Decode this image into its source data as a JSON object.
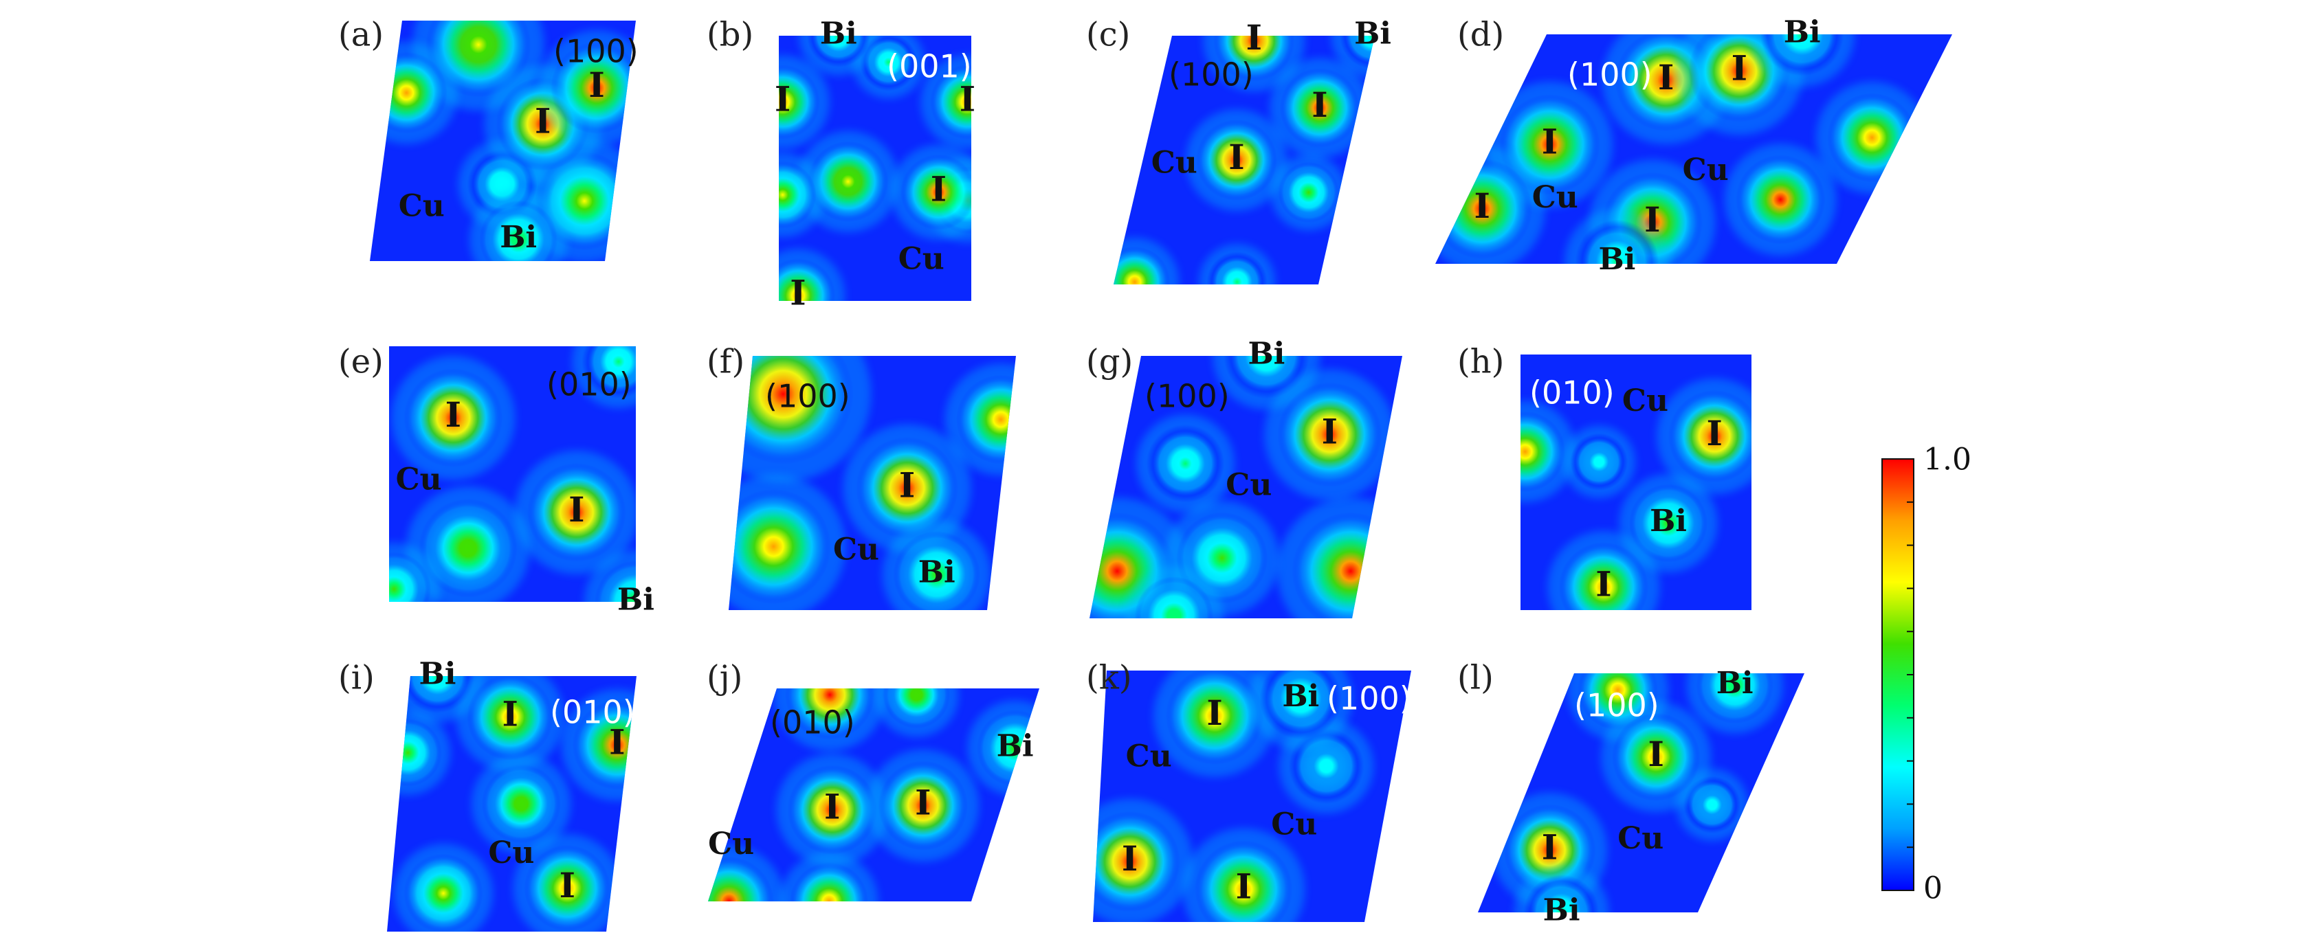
{
  "panels": [
    {
      "id": "a",
      "label": "(a)",
      "plane": "(100)",
      "plane_color": "#111111",
      "atoms": [
        {
          "symbol": "I",
          "sx": 0.66,
          "sy": 0.43,
          "r": 1.0
        },
        {
          "symbol": "I",
          "sx": 0.87,
          "sy": 0.28,
          "r": 0.95
        },
        {
          "symbol": "Cu",
          "sx": 0.19,
          "sy": 0.78,
          "r": 0
        },
        {
          "symbol": "Bi",
          "sx": 0.62,
          "sy": 0.91,
          "r": 0.45
        }
      ],
      "blobs": [
        {
          "sx": 0.34,
          "sy": 0.1,
          "r": 0.45,
          "v": 0.75
        },
        {
          "sx": 0.06,
          "sy": 0.3,
          "r": 0.35,
          "v": 0.9
        },
        {
          "sx": 0.88,
          "sy": 0.75,
          "r": 0.42,
          "v": 0.7
        },
        {
          "sx": 0.52,
          "sy": 0.68,
          "r": 0.3,
          "v": 0.35
        }
      ]
    },
    {
      "id": "b",
      "label": "(b)",
      "plane": "(001)",
      "plane_color": "#ffffff",
      "atoms": [
        {
          "symbol": "Bi",
          "sx": 0.31,
          "sy": 0.0,
          "r": 0.4
        },
        {
          "symbol": "I",
          "sx": 0.02,
          "sy": 0.25,
          "r": 0.9
        },
        {
          "symbol": "I",
          "sx": 0.98,
          "sy": 0.25,
          "r": 0.9
        },
        {
          "symbol": "I",
          "sx": 0.83,
          "sy": 0.59,
          "r": 0.95
        },
        {
          "symbol": "Cu",
          "sx": 0.74,
          "sy": 0.85,
          "r": 0
        },
        {
          "symbol": "I",
          "sx": 0.1,
          "sy": 0.98,
          "r": 0.9
        }
      ],
      "blobs": [
        {
          "sx": 0.36,
          "sy": 0.55,
          "r": 0.42,
          "v": 0.75
        },
        {
          "sx": 0.02,
          "sy": 0.6,
          "r": 0.35,
          "v": 0.7
        },
        {
          "sx": 0.98,
          "sy": 0.62,
          "r": 0.35,
          "v": 0.5
        },
        {
          "sx": 0.57,
          "sy": 0.1,
          "r": 0.3,
          "v": 0.4
        }
      ]
    },
    {
      "id": "c",
      "label": "(c)",
      "plane": "(100)",
      "plane_color": "#111111",
      "atoms": [
        {
          "symbol": "I",
          "sx": 0.41,
          "sy": 0.02,
          "r": 1.0
        },
        {
          "symbol": "Bi",
          "sx": 0.99,
          "sy": 0.0,
          "r": 0.4
        },
        {
          "symbol": "I",
          "sx": 0.81,
          "sy": 0.29,
          "r": 0.95
        },
        {
          "symbol": "I",
          "sx": 0.46,
          "sy": 0.5,
          "r": 1.0
        },
        {
          "symbol": "Cu",
          "sx": 0.16,
          "sy": 0.52,
          "r": 0
        }
      ],
      "blobs": [
        {
          "sx": 0.1,
          "sy": 0.99,
          "r": 0.35,
          "v": 0.85
        },
        {
          "sx": 0.85,
          "sy": 0.63,
          "r": 0.3,
          "v": 0.5
        },
        {
          "sx": 0.6,
          "sy": 0.99,
          "r": 0.3,
          "v": 0.4
        }
      ]
    },
    {
      "id": "d",
      "label": "(d)",
      "plane": "(100)",
      "plane_color": "#ffffff",
      "atoms": [
        {
          "symbol": "I",
          "sx": 0.35,
          "sy": 0.2,
          "r": 1.0
        },
        {
          "symbol": "I",
          "sx": 0.52,
          "sy": 0.16,
          "r": 1.0
        },
        {
          "symbol": "Bi",
          "sx": 0.63,
          "sy": 0.0,
          "r": 0.4
        },
        {
          "symbol": "I",
          "sx": 0.14,
          "sy": 0.48,
          "r": 0.95
        },
        {
          "symbol": "Cu",
          "sx": 0.22,
          "sy": 0.72,
          "r": 0
        },
        {
          "symbol": "Cu",
          "sx": 0.56,
          "sy": 0.6,
          "r": 0
        },
        {
          "symbol": "I",
          "sx": 0.05,
          "sy": 0.76,
          "r": 0.95
        },
        {
          "symbol": "I",
          "sx": 0.49,
          "sy": 0.82,
          "r": 0.95
        },
        {
          "symbol": "Bi",
          "sx": 0.45,
          "sy": 0.99,
          "r": 0.4
        }
      ],
      "blobs": [
        {
          "sx": 0.93,
          "sy": 0.45,
          "r": 0.35,
          "v": 0.9
        },
        {
          "sx": 0.78,
          "sy": 0.72,
          "r": 0.35,
          "v": 0.95
        }
      ]
    },
    {
      "id": "e",
      "label": "(e)",
      "plane": "(010)",
      "plane_color": "#111111",
      "atoms": [
        {
          "symbol": "I",
          "sx": 0.26,
          "sy": 0.28,
          "r": 1.0
        },
        {
          "symbol": "I",
          "sx": 0.76,
          "sy": 0.65,
          "r": 1.0
        },
        {
          "symbol": "Cu",
          "sx": 0.12,
          "sy": 0.53,
          "r": 0
        },
        {
          "symbol": "Bi",
          "sx": 1.0,
          "sy": 1.0,
          "r": 0.45
        }
      ],
      "blobs": [
        {
          "sx": 0.93,
          "sy": 0.06,
          "r": 0.3,
          "v": 0.4
        },
        {
          "sx": 0.32,
          "sy": 0.79,
          "r": 0.4,
          "v": 0.6
        },
        {
          "sx": 0.02,
          "sy": 0.95,
          "r": 0.3,
          "v": 0.5
        }
      ]
    },
    {
      "id": "f",
      "label": "(f)",
      "plane": "(100)",
      "plane_color": "#111111",
      "atoms": [
        {
          "symbol": "I",
          "sx": 0.64,
          "sy": 0.52,
          "r": 1.0
        },
        {
          "symbol": "Cu",
          "sx": 0.47,
          "sy": 0.77,
          "r": 0
        },
        {
          "symbol": "Bi",
          "sx": 0.79,
          "sy": 0.86,
          "r": 0.5
        }
      ],
      "blobs": [
        {
          "sx": 0.13,
          "sy": 0.15,
          "r": 0.55,
          "v": 1.0
        },
        {
          "sx": 0.97,
          "sy": 0.25,
          "r": 0.35,
          "v": 0.8
        },
        {
          "sx": 0.15,
          "sy": 0.75,
          "r": 0.45,
          "v": 0.85
        }
      ]
    },
    {
      "id": "g",
      "label": "(g)",
      "plane": "(100)",
      "plane_color": "#111111",
      "atoms": [
        {
          "symbol": "Bi",
          "sx": 0.48,
          "sy": 0.0,
          "r": 0.4
        },
        {
          "symbol": "I",
          "sx": 0.78,
          "sy": 0.3,
          "r": 1.0
        },
        {
          "symbol": "Cu",
          "sx": 0.51,
          "sy": 0.5,
          "r": 0
        }
      ],
      "blobs": [
        {
          "sx": 0.07,
          "sy": 0.82,
          "r": 0.45,
          "v": 0.95
        },
        {
          "sx": 0.96,
          "sy": 0.82,
          "r": 0.45,
          "v": 0.95
        },
        {
          "sx": 0.46,
          "sy": 0.77,
          "r": 0.35,
          "v": 0.5
        },
        {
          "sx": 0.25,
          "sy": 0.41,
          "r": 0.3,
          "v": 0.4
        },
        {
          "sx": 0.32,
          "sy": 0.99,
          "r": 0.3,
          "v": 0.45
        }
      ]
    },
    {
      "id": "h",
      "label": "(h)",
      "plane": "(010)",
      "plane_color": "#ffffff",
      "atoms": [
        {
          "symbol": "Cu",
          "sx": 0.54,
          "sy": 0.19,
          "r": 0
        },
        {
          "symbol": "I",
          "sx": 0.84,
          "sy": 0.32,
          "r": 1.0
        },
        {
          "symbol": "Bi",
          "sx": 0.64,
          "sy": 0.66,
          "r": 0.5
        },
        {
          "symbol": "I",
          "sx": 0.36,
          "sy": 0.91,
          "r": 0.9
        }
      ],
      "blobs": [
        {
          "sx": 0.02,
          "sy": 0.38,
          "r": 0.35,
          "v": 0.9
        },
        {
          "sx": 0.34,
          "sy": 0.42,
          "r": 0.25,
          "v": 0.3
        }
      ]
    },
    {
      "id": "i",
      "label": "(i)",
      "plane": "(010)",
      "plane_color": "#ffffff",
      "atoms": [
        {
          "symbol": "Bi",
          "sx": 0.12,
          "sy": 0.0,
          "r": 0.4
        },
        {
          "symbol": "I",
          "sx": 0.46,
          "sy": 0.16,
          "r": 0.85
        },
        {
          "symbol": "I",
          "sx": 0.95,
          "sy": 0.27,
          "r": 0.95
        },
        {
          "symbol": "Cu",
          "sx": 0.53,
          "sy": 0.7,
          "r": 0
        },
        {
          "symbol": "I",
          "sx": 0.8,
          "sy": 0.83,
          "r": 0.85
        }
      ],
      "blobs": [
        {
          "sx": 0.55,
          "sy": 0.5,
          "r": 0.35,
          "v": 0.6
        },
        {
          "sx": 0.24,
          "sy": 0.85,
          "r": 0.35,
          "v": 0.65
        },
        {
          "sx": 0.02,
          "sy": 0.3,
          "r": 0.3,
          "v": 0.5
        }
      ]
    },
    {
      "id": "j",
      "label": "(j)",
      "plane": "(010)",
      "plane_color": "#111111",
      "atoms": [
        {
          "symbol": "Bi",
          "sx": 0.98,
          "sy": 0.28,
          "r": 0.5
        },
        {
          "symbol": "I",
          "sx": 0.36,
          "sy": 0.57,
          "r": 1.0
        },
        {
          "symbol": "I",
          "sx": 0.7,
          "sy": 0.55,
          "r": 1.0
        },
        {
          "symbol": "Cu",
          "sx": 0.02,
          "sy": 0.74,
          "r": 0
        }
      ],
      "blobs": [
        {
          "sx": 0.21,
          "sy": 0.03,
          "r": 0.4,
          "v": 1.0
        },
        {
          "sx": 0.54,
          "sy": 0.03,
          "r": 0.3,
          "v": 0.6
        },
        {
          "sx": 0.08,
          "sy": 1.0,
          "r": 0.4,
          "v": 0.95
        },
        {
          "sx": 0.46,
          "sy": 1.0,
          "r": 0.35,
          "v": 0.85
        }
      ]
    },
    {
      "id": "k",
      "label": "(k)",
      "plane": "(100)",
      "plane_color": "#ffffff",
      "atoms": [
        {
          "symbol": "I",
          "sx": 0.37,
          "sy": 0.18,
          "r": 0.9
        },
        {
          "symbol": "Bi",
          "sx": 0.65,
          "sy": 0.11,
          "r": 0.4
        },
        {
          "symbol": "Cu",
          "sx": 0.16,
          "sy": 0.35,
          "r": 0
        },
        {
          "symbol": "Cu",
          "sx": 0.69,
          "sy": 0.62,
          "r": 0
        },
        {
          "symbol": "I",
          "sx": 0.12,
          "sy": 0.76,
          "r": 1.0
        },
        {
          "symbol": "I",
          "sx": 0.54,
          "sy": 0.87,
          "r": 0.9
        }
      ],
      "blobs": [
        {
          "sx": 0.77,
          "sy": 0.38,
          "r": 0.3,
          "v": 0.3
        }
      ]
    },
    {
      "id": "l",
      "label": "(l)",
      "plane": "(100)",
      "plane_color": "#ffffff",
      "atoms": [
        {
          "symbol": "Bi",
          "sx": 0.72,
          "sy": 0.05,
          "r": 0.45
        },
        {
          "symbol": "I",
          "sx": 0.51,
          "sy": 0.35,
          "r": 0.85
        },
        {
          "symbol": "Cu",
          "sx": 0.6,
          "sy": 0.7,
          "r": 0
        },
        {
          "symbol": "I",
          "sx": 0.21,
          "sy": 0.74,
          "r": 1.0
        },
        {
          "symbol": "Bi",
          "sx": 0.38,
          "sy": 1.0,
          "r": 0.4
        }
      ],
      "blobs": [
        {
          "sx": 0.22,
          "sy": 0.07,
          "r": 0.35,
          "v": 0.85
        },
        {
          "sx": 0.85,
          "sy": 0.55,
          "r": 0.25,
          "v": 0.3
        }
      ]
    }
  ],
  "colorbar": {
    "max_label": "1.0",
    "min_label": "0",
    "range": [
      0,
      1
    ],
    "colormap": [
      "#0000ff",
      "#00a0ff",
      "#00ffff",
      "#00ff70",
      "#40e000",
      "#ffff00",
      "#ffa000",
      "#ff0000"
    ]
  }
}
